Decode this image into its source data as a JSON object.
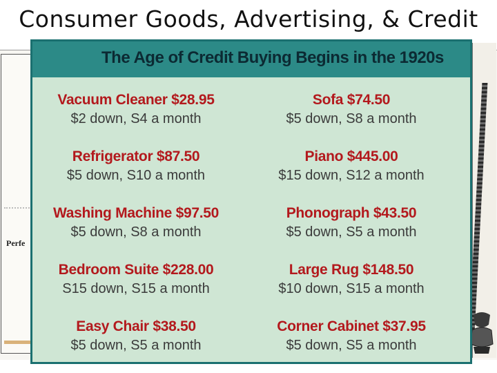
{
  "slide": {
    "title": "Consumer Goods, Advertising, & Credit"
  },
  "background": {
    "left_text": "Perfe"
  },
  "card": {
    "title": "The Age of Credit Buying Begins in the 1920s",
    "items": [
      {
        "name": "Vacuum Cleaner $28.95",
        "terms": "$2 down, S4 a month"
      },
      {
        "name": "Sofa $74.50",
        "terms": "$5 down, S8 a month"
      },
      {
        "name": "Refrigerator $87.50",
        "terms": "$5 down, S10 a month"
      },
      {
        "name": "Piano $445.00",
        "terms": "$15 down, S12 a month"
      },
      {
        "name": "Washing Machine $97.50",
        "terms": "$5 down, S8 a month"
      },
      {
        "name": "Phonograph $43.50",
        "terms": "$5 down, S5 a month"
      },
      {
        "name": "Bedroom Suite $228.00",
        "terms": "S15 down, S15 a month"
      },
      {
        "name": "Large Rug $148.50",
        "terms": "$10 down, S15 a month"
      },
      {
        "name": "Easy Chair $38.50",
        "terms": "$5 down, S5 a month"
      },
      {
        "name": "Corner Cabinet $37.95",
        "terms": "$5 down, S5 a month"
      }
    ]
  },
  "colors": {
    "card_background": "#cfe6d4",
    "card_header": "#2c8a87",
    "item_name": "#b3191d",
    "item_terms": "#3a3a3a"
  }
}
